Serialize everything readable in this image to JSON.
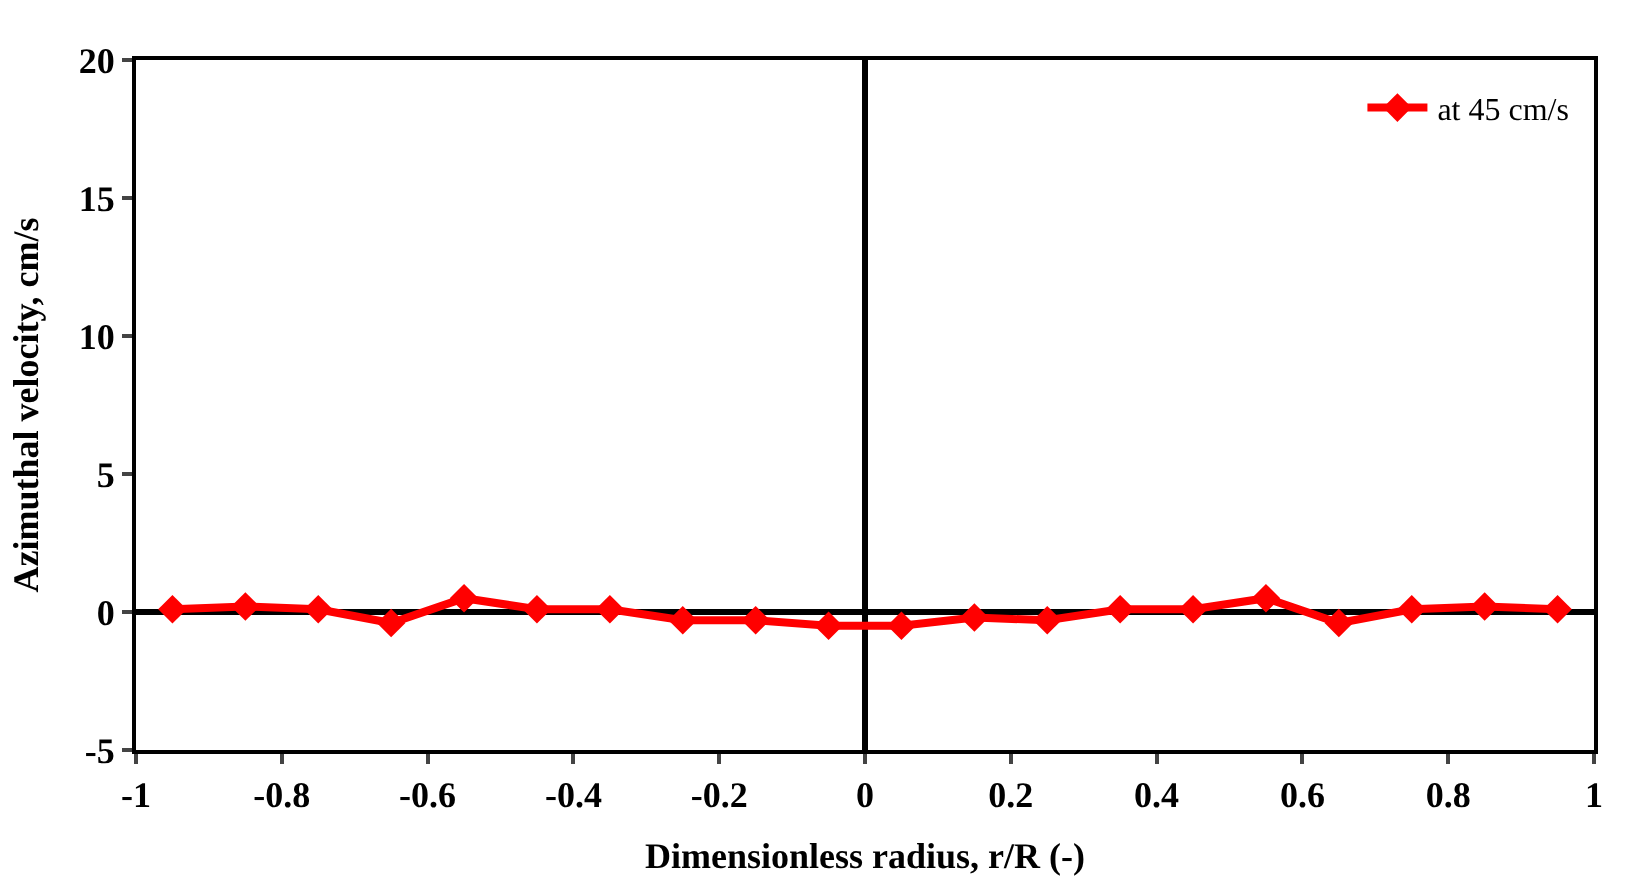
{
  "chart_data": {
    "type": "line",
    "xlabel": "Dimensionless radius, r/R (-)",
    "ylabel": "Azimuthal velocity, cm/s",
    "x": [
      -0.95,
      -0.85,
      -0.75,
      -0.65,
      -0.55,
      -0.45,
      -0.35,
      -0.25,
      -0.15,
      -0.05,
      0.05,
      0.15,
      0.25,
      0.35,
      0.45,
      0.55,
      0.65,
      0.75,
      0.85,
      0.95
    ],
    "series": [
      {
        "name": "at 45 cm/s",
        "color": "#ff0000",
        "values": [
          0.1,
          0.2,
          0.1,
          -0.4,
          0.5,
          0.1,
          0.1,
          -0.3,
          -0.3,
          -0.5,
          -0.5,
          -0.2,
          -0.3,
          0.1,
          0.1,
          0.5,
          -0.4,
          0.1,
          0.2,
          0.1
        ]
      }
    ],
    "xlim": [
      -1,
      1
    ],
    "xticks": [
      -1,
      -0.8,
      -0.6,
      -0.4,
      -0.2,
      0,
      0.2,
      0.4,
      0.6,
      0.8,
      1
    ],
    "ylim": [
      -5,
      20
    ],
    "yticks": [
      -5,
      0,
      5,
      10,
      15,
      20
    ],
    "legend": "top right",
    "marker": "diamond",
    "line_style": "solid"
  }
}
